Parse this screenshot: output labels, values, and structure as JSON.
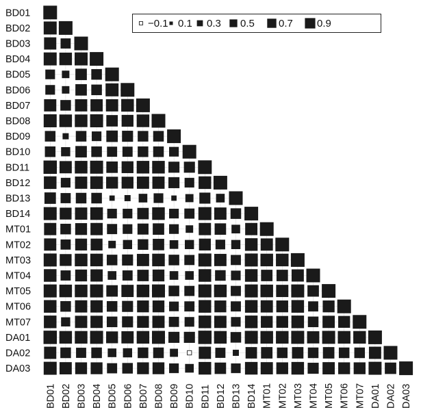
{
  "chart_data": {
    "type": "heatmap",
    "variables": [
      "BD01",
      "BD02",
      "BD03",
      "BD04",
      "BD05",
      "BD06",
      "BD07",
      "BD08",
      "BD09",
      "BD10",
      "BD11",
      "BD12",
      "BD13",
      "BD14",
      "MT01",
      "MT02",
      "MT03",
      "MT04",
      "MT05",
      "MT06",
      "MT07",
      "DA01",
      "DA02",
      "DA03"
    ],
    "matrix": [
      [
        1.0
      ],
      [
        0.9,
        1.0
      ],
      [
        0.8,
        0.55,
        1.0
      ],
      [
        0.9,
        0.85,
        0.9,
        1.0
      ],
      [
        0.5,
        0.3,
        0.7,
        0.6,
        1.0
      ],
      [
        0.5,
        0.3,
        0.7,
        0.6,
        0.9,
        1.0
      ],
      [
        0.8,
        0.6,
        0.8,
        0.8,
        0.8,
        0.85,
        1.0
      ],
      [
        0.9,
        0.85,
        0.85,
        0.9,
        0.7,
        0.75,
        0.85,
        1.0
      ],
      [
        0.6,
        0.2,
        0.6,
        0.5,
        0.7,
        0.65,
        0.6,
        0.6,
        1.0
      ],
      [
        0.6,
        0.45,
        0.7,
        0.6,
        0.55,
        0.55,
        0.6,
        0.6,
        0.5,
        1.0
      ],
      [
        0.95,
        0.8,
        0.85,
        0.9,
        0.7,
        0.75,
        0.85,
        0.85,
        0.65,
        0.65,
        1.0
      ],
      [
        0.85,
        0.5,
        0.8,
        0.85,
        0.75,
        0.75,
        0.8,
        0.8,
        0.65,
        0.5,
        0.85,
        1.0
      ],
      [
        0.7,
        0.55,
        0.6,
        0.6,
        0.15,
        0.2,
        0.4,
        0.5,
        0.15,
        0.35,
        0.65,
        0.4,
        1.0
      ],
      [
        0.9,
        0.75,
        0.8,
        0.85,
        0.5,
        0.5,
        0.7,
        0.85,
        0.5,
        0.55,
        0.9,
        0.8,
        0.6,
        1.0
      ],
      [
        0.8,
        0.6,
        0.75,
        0.8,
        0.55,
        0.5,
        0.65,
        0.7,
        0.5,
        0.3,
        0.8,
        0.7,
        0.4,
        0.8,
        1.0
      ],
      [
        0.8,
        0.55,
        0.75,
        0.75,
        0.3,
        0.45,
        0.6,
        0.7,
        0.4,
        0.45,
        0.75,
        0.5,
        0.45,
        0.85,
        0.8,
        1.0
      ],
      [
        0.9,
        0.75,
        0.85,
        0.85,
        0.6,
        0.65,
        0.8,
        0.85,
        0.6,
        0.55,
        0.9,
        0.8,
        0.55,
        0.9,
        0.85,
        0.85,
        1.0
      ],
      [
        0.85,
        0.55,
        0.75,
        0.8,
        0.4,
        0.55,
        0.7,
        0.75,
        0.4,
        0.4,
        0.85,
        0.6,
        0.5,
        0.85,
        0.7,
        0.7,
        0.8,
        1.0
      ],
      [
        0.9,
        0.85,
        0.85,
        0.9,
        0.7,
        0.8,
        0.85,
        0.9,
        0.6,
        0.55,
        0.9,
        0.85,
        0.55,
        0.9,
        0.85,
        0.8,
        0.9,
        0.7,
        1.0
      ],
      [
        0.85,
        0.6,
        0.8,
        0.8,
        0.6,
        0.65,
        0.75,
        0.75,
        0.5,
        0.55,
        0.85,
        0.75,
        0.55,
        0.85,
        0.8,
        0.75,
        0.85,
        0.55,
        0.75,
        1.0
      ],
      [
        0.85,
        0.45,
        0.8,
        0.8,
        0.6,
        0.65,
        0.75,
        0.8,
        0.55,
        0.5,
        0.85,
        0.8,
        0.5,
        0.85,
        0.75,
        0.75,
        0.85,
        0.6,
        0.8,
        0.75,
        1.0
      ],
      [
        0.95,
        0.85,
        0.85,
        0.9,
        0.75,
        0.8,
        0.85,
        0.9,
        0.65,
        0.65,
        0.95,
        0.85,
        0.6,
        0.9,
        0.85,
        0.85,
        0.9,
        0.8,
        0.9,
        0.85,
        0.85,
        1.0
      ],
      [
        0.8,
        0.6,
        0.55,
        0.6,
        0.4,
        0.45,
        0.6,
        0.6,
        0.35,
        -0.1,
        0.8,
        0.55,
        0.2,
        0.7,
        0.7,
        0.6,
        0.7,
        0.6,
        0.7,
        0.6,
        0.6,
        0.8,
        1.0
      ],
      [
        0.9,
        0.8,
        0.75,
        0.75,
        0.55,
        0.6,
        0.75,
        0.75,
        0.5,
        0.4,
        0.85,
        0.7,
        0.5,
        0.85,
        0.8,
        0.75,
        0.85,
        0.65,
        0.8,
        0.75,
        0.75,
        0.9,
        0.7,
        1.0
      ]
    ],
    "legend": {
      "values": [
        -0.1,
        0.1,
        0.3,
        0.5,
        0.7,
        0.9
      ],
      "labels": [
        "−0.1",
        "0.1",
        "0.3",
        "0.5",
        "0.7",
        "0.9"
      ],
      "placement": "top-right"
    },
    "colors": {
      "positive": "#1a1a1a",
      "negative_fill": "#ffffff",
      "negative_stroke": "#333333",
      "grid": "#d9d9d9"
    },
    "grid": true
  }
}
